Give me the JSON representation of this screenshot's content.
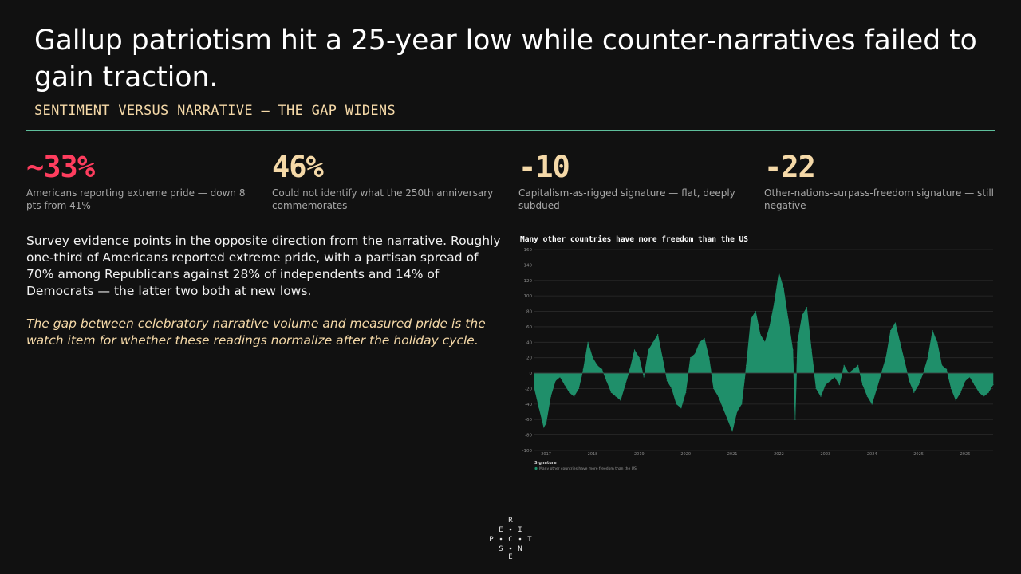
{
  "slide": {
    "title": "Gallup patriotism hit a 25-year low while counter-narratives failed to gain traction.",
    "subtitle": "SENTIMENT VERSUS NARRATIVE — THE GAP WIDENS"
  },
  "stats": [
    {
      "value": "~33%",
      "label": "Americans reporting extreme pride — down 8 pts from 41%",
      "color": "#ff3d5e"
    },
    {
      "value": "46%",
      "label": "Could not identify what the 250th anniversary commemorates",
      "color": "#f5d9a8"
    },
    {
      "value": "-10",
      "label": "Capitalism-as-rigged signature — flat, deeply subdued",
      "color": "#f5d9a8"
    },
    {
      "value": "-22",
      "label": "Other-nations-surpass-freedom signature — still negative",
      "color": "#f5d9a8"
    }
  ],
  "body": {
    "paragraph": "Survey evidence points in the opposite direction from the narrative. Roughly one-third of Americans reported extreme pride, with a partisan spread of 70% among Republicans against 28% of independents and 14% of Democrats — the latter two both at new lows.",
    "callout": "The gap between celebratory narrative volume and measured pride is the watch item for whether these readings normalize after the holiday cycle."
  },
  "logo": {
    "letters": [
      "R",
      "E",
      "I",
      "P",
      "C",
      "T",
      "S",
      "N",
      "E"
    ]
  },
  "colors": {
    "background": "#111111",
    "accent_red": "#ff3d5e",
    "accent_cream": "#f5d9a8",
    "rule": "#5fbf9c",
    "series": "#1f8f6a"
  },
  "chart_data": {
    "type": "area",
    "title": "Many other countries have more freedom than the US",
    "yticks": [
      160,
      140,
      120,
      100,
      80,
      60,
      40,
      20,
      0,
      -20,
      -40,
      -60,
      -80,
      -100
    ],
    "ylim": [
      -100,
      160
    ],
    "xticks": [
      "2017",
      "2018",
      "2019",
      "2020",
      "2021",
      "2022",
      "2023",
      "2024",
      "2025",
      "2026"
    ],
    "xlim": [
      2016.75,
      2026.6
    ],
    "grid": true,
    "legend_title": "Signature",
    "legend_position": "bottom-left",
    "series": [
      {
        "name": "Many other countries have more freedom than the US",
        "color": "#1f8f6a",
        "x": [
          2016.75,
          2016.85,
          2016.95,
          2017.0,
          2017.1,
          2017.2,
          2017.3,
          2017.4,
          2017.5,
          2017.6,
          2017.7,
          2017.8,
          2017.9,
          2018.0,
          2018.1,
          2018.2,
          2018.3,
          2018.4,
          2018.5,
          2018.6,
          2018.7,
          2018.8,
          2018.9,
          2019.0,
          2019.1,
          2019.2,
          2019.3,
          2019.4,
          2019.5,
          2019.6,
          2019.7,
          2019.8,
          2019.9,
          2020.0,
          2020.1,
          2020.2,
          2020.3,
          2020.4,
          2020.5,
          2020.6,
          2020.7,
          2020.8,
          2020.9,
          2021.0,
          2021.1,
          2021.2,
          2021.3,
          2021.4,
          2021.5,
          2021.6,
          2021.7,
          2021.8,
          2021.9,
          2022.0,
          2022.1,
          2022.2,
          2022.3,
          2022.35,
          2022.4,
          2022.5,
          2022.6,
          2022.7,
          2022.8,
          2022.9,
          2023.0,
          2023.1,
          2023.2,
          2023.3,
          2023.4,
          2023.5,
          2023.6,
          2023.7,
          2023.8,
          2023.9,
          2024.0,
          2024.1,
          2024.2,
          2024.3,
          2024.4,
          2024.5,
          2024.6,
          2024.7,
          2024.8,
          2024.9,
          2025.0,
          2025.1,
          2025.2,
          2025.3,
          2025.4,
          2025.5,
          2025.6,
          2025.7,
          2025.8,
          2025.9,
          2026.0,
          2026.1,
          2026.2,
          2026.3,
          2026.4,
          2026.5,
          2026.6
        ],
        "values": [
          -20,
          -45,
          -70,
          -65,
          -30,
          -10,
          -5,
          -15,
          -25,
          -30,
          -20,
          5,
          40,
          20,
          10,
          5,
          -10,
          -25,
          -30,
          -35,
          -15,
          5,
          30,
          20,
          -5,
          30,
          40,
          50,
          20,
          -10,
          -20,
          -40,
          -45,
          -25,
          20,
          25,
          40,
          45,
          20,
          -20,
          -30,
          -45,
          -60,
          -75,
          -50,
          -40,
          10,
          70,
          80,
          50,
          40,
          60,
          90,
          130,
          110,
          70,
          30,
          -60,
          40,
          75,
          85,
          30,
          -20,
          -30,
          -15,
          -10,
          -5,
          -15,
          10,
          0,
          5,
          10,
          -15,
          -30,
          -40,
          -20,
          0,
          20,
          55,
          65,
          40,
          15,
          -10,
          -25,
          -15,
          0,
          20,
          55,
          40,
          10,
          5,
          -20,
          -35,
          -25,
          -10,
          -5,
          -15,
          -25,
          -30,
          -25,
          -15
        ]
      }
    ]
  }
}
